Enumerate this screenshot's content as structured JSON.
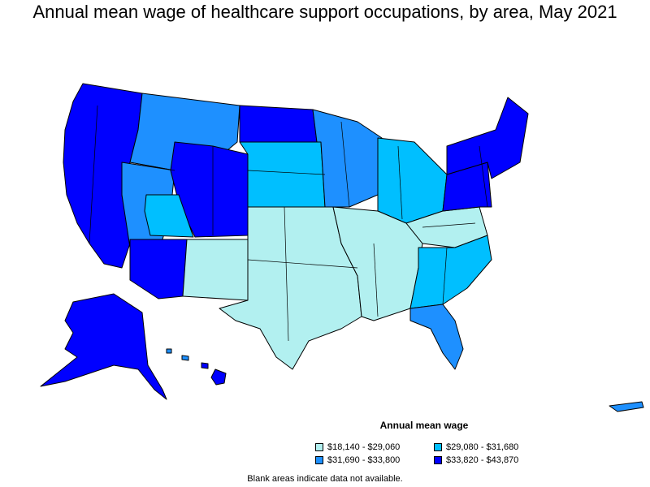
{
  "title": "Annual mean wage of healthcare support occupations, by area, May 2021",
  "legend": {
    "title": "Annual mean wage",
    "items": [
      {
        "label": "$18,140 - $29,060",
        "color": "#b2f0f0"
      },
      {
        "label": "$29,080 - $31,680",
        "color": "#00bfff"
      },
      {
        "label": "$31,690 - $33,800",
        "color": "#1e90ff"
      },
      {
        "label": "$33,820 - $43,870",
        "color": "#0000ff"
      }
    ]
  },
  "note": "Blank areas indicate data not available."
}
